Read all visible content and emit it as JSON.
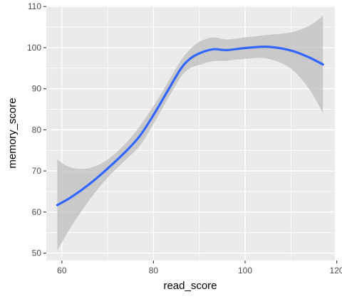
{
  "chart_data": {
    "type": "line",
    "title": "",
    "xlabel": "read_score",
    "ylabel": "memory_score",
    "xlim": [
      56.6,
      119.6
    ],
    "ylim": [
      48.2,
      110.2
    ],
    "x_ticks": [
      60,
      80,
      100,
      120
    ],
    "y_ticks": [
      50,
      60,
      70,
      80,
      90,
      100,
      110
    ],
    "x_tick_labels": [
      "60",
      "80",
      "100",
      "120"
    ],
    "y_tick_labels": [
      "50",
      "60",
      "70",
      "80",
      "90",
      "100",
      "110"
    ],
    "grid": true,
    "legend": "none",
    "series": [
      {
        "kind": "smooth-line",
        "color": "#3366ff",
        "x": [
          59,
          62,
          66,
          70,
          74,
          77,
          80,
          83,
          86,
          88,
          90,
          93,
          96,
          100,
          105,
          110,
          114,
          117
        ],
        "y": [
          61.7,
          63.6,
          66.8,
          70.6,
          74.8,
          78.5,
          83.6,
          89.3,
          94.9,
          97.3,
          98.6,
          99.6,
          99.4,
          99.9,
          100.2,
          99.3,
          97.6,
          95.9
        ]
      },
      {
        "kind": "confidence-band",
        "color": "#bdbdbd",
        "x": [
          59,
          62,
          66,
          70,
          74,
          77,
          80,
          83,
          86,
          88,
          90,
          93,
          96,
          100,
          105,
          110,
          114,
          117
        ],
        "upper": [
          72.8,
          70.8,
          70.7,
          72.8,
          76.8,
          80.9,
          85.8,
          91.3,
          96.9,
          99.6,
          101.4,
          102.5,
          102.0,
          102.5,
          103.1,
          103.7,
          105.3,
          107.7
        ],
        "lower": [
          50.6,
          56.4,
          62.9,
          68.4,
          72.8,
          76.1,
          81.4,
          87.3,
          92.9,
          95.0,
          95.8,
          96.7,
          96.8,
          97.3,
          97.3,
          94.9,
          89.9,
          84.1
        ]
      }
    ]
  }
}
